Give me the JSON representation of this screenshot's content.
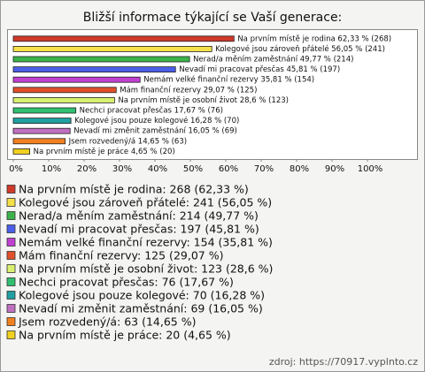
{
  "chart_data": {
    "type": "bar",
    "orientation": "horizontal",
    "title": "Bližší informace týkající se Vaší generace:",
    "categories": [
      "Na prvním místě je rodina",
      "Kolegové jsou zároveň přátelé",
      "Nerad/a měním zaměstnání",
      "Nevadí mi pracovat přesčas",
      "Nemám velké finanční rezervy",
      "Mám finanční rezervy",
      "Na prvním místě je osobní život",
      "Nechci pracovat přesčas",
      "Kolegové jsou pouze kolegové",
      "Nevadí mi změnit zaměstnání",
      "Jsem rozvedený/á",
      "Na prvním místě je práce"
    ],
    "values": [
      62.33,
      56.05,
      49.77,
      45.81,
      35.81,
      29.07,
      28.6,
      17.67,
      16.28,
      16.05,
      14.65,
      4.65
    ],
    "value_labels": [
      "Na prvním místě je rodina 62,33 % (268)",
      "Kolegové jsou zároveň přátelé 56,05 % (241)",
      "Nerad/a měním zaměstnání 49,77 % (214)",
      "Nevadí mi pracovat přesčas 45,81 % (197)",
      "Nemám velké finanční rezervy 35,81 % (154)",
      "Mám finanční rezervy 29,07 % (125)",
      "Na prvním místě je osobní život 28,6 % (123)",
      "Nechci pracovat přesčas 17,67 % (76)",
      "Kolegové jsou pouze kolegové 16,28 % (70)",
      "Nevadí mi změnit zaměstnání 16,05 % (69)",
      "Jsem rozvedený/á 14,65 % (63)",
      "Na prvním místě je práce 4,65 % (20)"
    ],
    "legend_labels": [
      "Na prvním místě je rodina: 268 (62,33 %)",
      "Kolegové jsou zároveň přátelé: 241 (56,05 %)",
      "Nerad/a měním zaměstnání: 214 (49,77 %)",
      "Nevadí mi pracovat přesčas: 197 (45,81 %)",
      "Nemám velké finanční rezervy: 154 (35,81 %)",
      "Mám finanční rezervy: 125 (29,07 %)",
      "Na prvním místě je osobní život: 123 (28,6 %)",
      "Nechci pracovat přesčas: 76 (17,67 %)",
      "Kolegové jsou pouze kolegové: 70 (16,28 %)",
      "Nevadí mi změnit zaměstnání: 69 (16,05 %)",
      "Jsem rozvedený/á: 63 (14,65 %)",
      "Na prvním místě je práce: 20 (4,65 %)"
    ],
    "colors": [
      "#d0392a",
      "#f5e04a",
      "#3cb34a",
      "#4a5ee8",
      "#c040d0",
      "#e0502a",
      "#d8f070",
      "#30c070",
      "#20a0a0",
      "#c070c0",
      "#f08020",
      "#f0d020"
    ],
    "xlim": [
      0,
      100
    ],
    "xticks": [
      {
        "value": 0,
        "label": "0%"
      },
      {
        "value": 10,
        "label": "10%"
      },
      {
        "value": 20,
        "label": "20%"
      },
      {
        "value": 30,
        "label": "30%"
      },
      {
        "value": 40,
        "label": "40%"
      },
      {
        "value": 50,
        "label": "50%"
      },
      {
        "value": 60,
        "label": "60%"
      },
      {
        "value": 70,
        "label": "70%"
      },
      {
        "value": 80,
        "label": "80%"
      },
      {
        "value": 90,
        "label": "90%"
      },
      {
        "value": 100,
        "label": "100%"
      }
    ],
    "source": "zdroj: https://70917.vyplnto.cz"
  }
}
